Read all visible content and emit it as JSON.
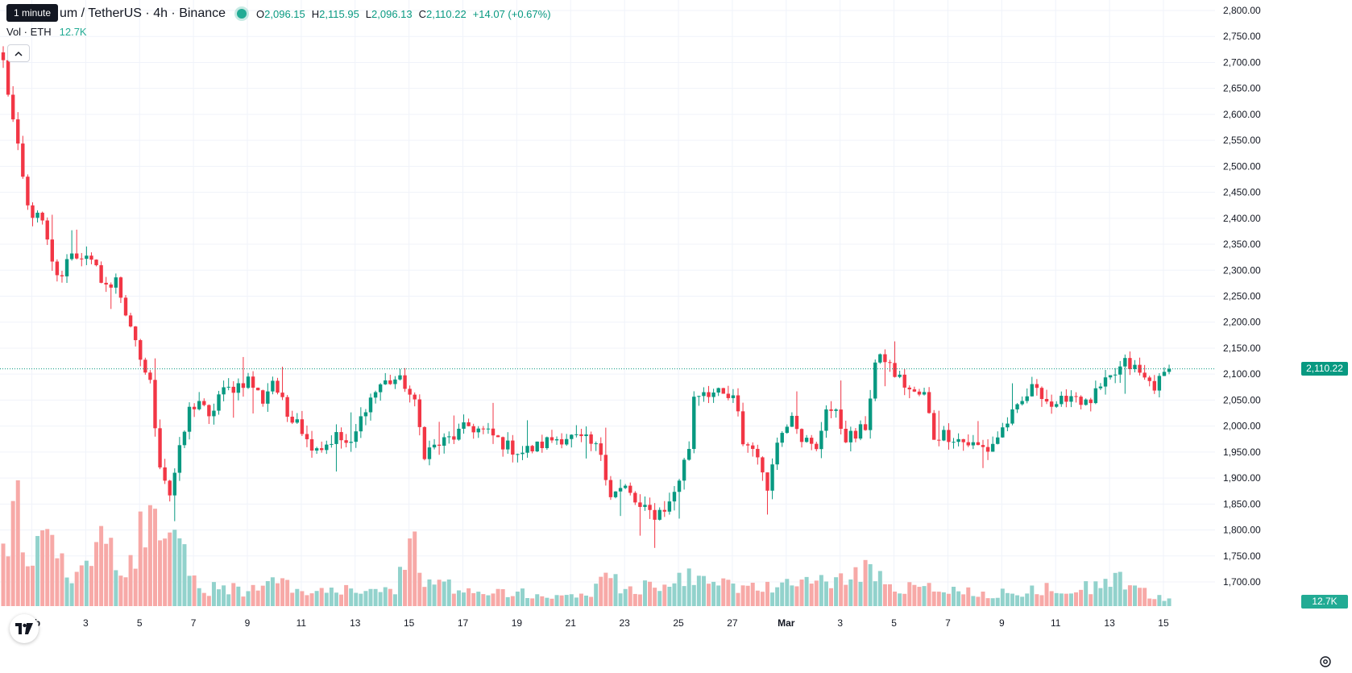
{
  "header": {
    "tooltip": "1 minute",
    "symbol": "um / TetherUS · 4h · Binance",
    "open_label": "O",
    "open": "2,096.15",
    "high_label": "H",
    "high": "2,115.95",
    "low_label": "L",
    "low": "2,096.13",
    "close_label": "C",
    "close": "2,110.22",
    "change": "+14.07 (+0.67%)"
  },
  "volume_legend": {
    "label": "Vol · ETH",
    "value": "12.7K"
  },
  "price_tag": "2,110.22",
  "volume_tag": "12.7K",
  "colors": {
    "up": "#089981",
    "down": "#f23645",
    "up_volume": "#92d2cc",
    "down_volume": "#f7a9a7",
    "grid": "#f0f3fa",
    "axis_text": "#131722"
  },
  "icons": {
    "collapse": "chevron-up-icon",
    "logo": "tradingview-logo",
    "settings": "gear-icon"
  },
  "chart_data": {
    "type": "candlestick",
    "interval": "4h",
    "y_axis": {
      "ticks": [
        "2,800.00",
        "2,750.00",
        "2,700.00",
        "2,650.00",
        "2,600.00",
        "2,550.00",
        "2,500.00",
        "2,450.00",
        "2,400.00",
        "2,350.00",
        "2,300.00",
        "2,250.00",
        "2,200.00",
        "2,150.00",
        "2,100.00",
        "2,050.00",
        "2,000.00",
        "1,950.00",
        "1,900.00",
        "1,850.00",
        "1,800.00",
        "1,750.00",
        "1,700.00"
      ],
      "range": [
        1670,
        2815
      ]
    },
    "x_axis": {
      "ticks": [
        "Feb",
        "3",
        "5",
        "7",
        "9",
        "11",
        "13",
        "15",
        "17",
        "19",
        "21",
        "23",
        "25",
        "27",
        "Mar",
        "3",
        "5",
        "7",
        "9",
        "11",
        "13",
        "15"
      ]
    },
    "last_price": 2110.22,
    "anchors": [
      [
        0,
        2700
      ],
      [
        3,
        2530
      ],
      [
        5,
        2420
      ],
      [
        8,
        2390
      ],
      [
        10,
        2310
      ],
      [
        12,
        2280
      ],
      [
        13,
        2330
      ],
      [
        16,
        2330
      ],
      [
        19,
        2300
      ],
      [
        22,
        2260
      ],
      [
        23,
        2290
      ],
      [
        26,
        2180
      ],
      [
        28,
        2130
      ],
      [
        30,
        2080
      ],
      [
        32,
        1930
      ],
      [
        34,
        1870
      ],
      [
        36,
        1950
      ],
      [
        38,
        2030
      ],
      [
        40,
        2050
      ],
      [
        42,
        2010
      ],
      [
        44,
        2060
      ],
      [
        48,
        2080
      ],
      [
        50,
        2090
      ],
      [
        53,
        2050
      ],
      [
        55,
        2090
      ],
      [
        58,
        2020
      ],
      [
        60,
        2020
      ],
      [
        62,
        1970
      ],
      [
        65,
        1960
      ],
      [
        68,
        1980
      ],
      [
        71,
        1960
      ],
      [
        74,
        2040
      ],
      [
        77,
        2080
      ],
      [
        80,
        2090
      ],
      [
        82,
        2080
      ],
      [
        84,
        2040
      ],
      [
        86,
        1950
      ],
      [
        88,
        1960
      ],
      [
        92,
        1980
      ],
      [
        95,
        2000
      ],
      [
        98,
        1990
      ],
      [
        100,
        1980
      ],
      [
        103,
        1960
      ],
      [
        106,
        1950
      ],
      [
        109,
        1960
      ],
      [
        112,
        1975
      ],
      [
        115,
        1980
      ],
      [
        119,
        1970
      ],
      [
        122,
        1950
      ],
      [
        124,
        1870
      ],
      [
        127,
        1880
      ],
      [
        130,
        1840
      ],
      [
        133,
        1830
      ],
      [
        136,
        1850
      ],
      [
        138,
        1900
      ],
      [
        140,
        1960
      ],
      [
        141,
        2060
      ],
      [
        143,
        2070
      ],
      [
        146,
        2060
      ],
      [
        149,
        2050
      ],
      [
        150,
        2020
      ],
      [
        151,
        1970
      ],
      [
        154,
        1950
      ],
      [
        155,
        1900
      ],
      [
        156,
        1880
      ],
      [
        157,
        1940
      ],
      [
        159,
        1990
      ],
      [
        161,
        2030
      ],
      [
        163,
        1980
      ],
      [
        165,
        1960
      ],
      [
        166,
        1950
      ],
      [
        168,
        2040
      ],
      [
        170,
        2020
      ],
      [
        172,
        1980
      ],
      [
        174,
        1980
      ],
      [
        176,
        2000
      ],
      [
        178,
        2120
      ],
      [
        180,
        2130
      ],
      [
        182,
        2100
      ],
      [
        184,
        2080
      ],
      [
        186,
        2060
      ],
      [
        188,
        2060
      ],
      [
        190,
        1980
      ],
      [
        192,
        1985
      ],
      [
        194,
        1980
      ],
      [
        196,
        1970
      ],
      [
        199,
        1960
      ],
      [
        201,
        1955
      ],
      [
        203,
        1980
      ],
      [
        205,
        2010
      ],
      [
        207,
        2030
      ],
      [
        209,
        2060
      ],
      [
        211,
        2080
      ],
      [
        213,
        2050
      ],
      [
        215,
        2030
      ],
      [
        217,
        2060
      ],
      [
        219,
        2060
      ],
      [
        221,
        2040
      ],
      [
        223,
        2060
      ],
      [
        225,
        2080
      ],
      [
        227,
        2100
      ],
      [
        229,
        2120
      ],
      [
        231,
        2110
      ],
      [
        233,
        2090
      ],
      [
        235,
        2080
      ],
      [
        236,
        2085
      ],
      [
        238,
        2110
      ]
    ],
    "volume_anchors": [
      [
        0,
        0.3
      ],
      [
        3,
        0.65
      ],
      [
        5,
        0.4
      ],
      [
        8,
        0.45
      ],
      [
        12,
        0.3
      ],
      [
        14,
        0.15
      ],
      [
        19,
        0.3
      ],
      [
        20,
        0.55
      ],
      [
        22,
        0.35
      ],
      [
        26,
        0.25
      ],
      [
        28,
        0.55
      ],
      [
        30,
        0.7
      ],
      [
        32,
        0.55
      ],
      [
        34,
        0.5
      ],
      [
        36,
        0.45
      ],
      [
        38,
        0.2
      ],
      [
        40,
        0.1
      ],
      [
        44,
        0.12
      ],
      [
        50,
        0.1
      ],
      [
        56,
        0.15
      ],
      [
        60,
        0.12
      ],
      [
        70,
        0.1
      ],
      [
        80,
        0.12
      ],
      [
        84,
        0.4
      ],
      [
        86,
        0.15
      ],
      [
        100,
        0.1
      ],
      [
        110,
        0.08
      ],
      [
        120,
        0.07
      ],
      [
        124,
        0.25
      ],
      [
        126,
        0.12
      ],
      [
        135,
        0.12
      ],
      [
        140,
        0.22
      ],
      [
        142,
        0.18
      ],
      [
        145,
        0.14
      ],
      [
        155,
        0.12
      ],
      [
        160,
        0.14
      ],
      [
        170,
        0.16
      ],
      [
        177,
        0.24
      ],
      [
        180,
        0.14
      ],
      [
        190,
        0.12
      ],
      [
        200,
        0.08
      ],
      [
        210,
        0.1
      ],
      [
        216,
        0.12
      ],
      [
        222,
        0.12
      ],
      [
        227,
        0.22
      ],
      [
        230,
        0.12
      ],
      [
        238,
        0.04
      ]
    ]
  }
}
